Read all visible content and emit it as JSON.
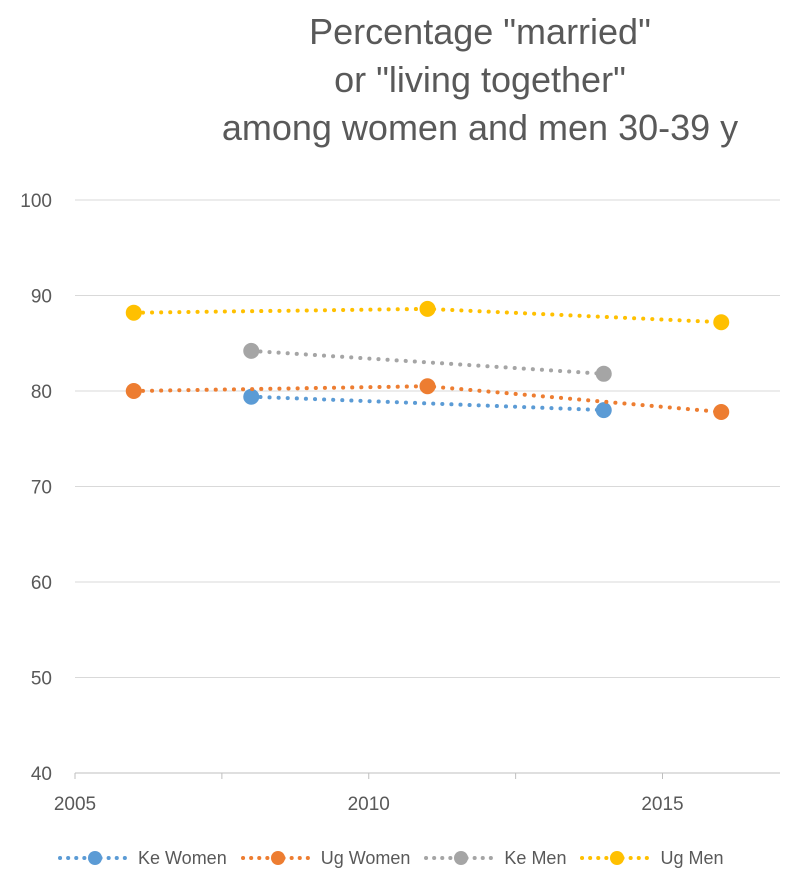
{
  "chart_data": {
    "type": "line",
    "title_lines": [
      "Percentage \"married\"",
      "or \"living together\"",
      "among women and men 30-39 y"
    ],
    "xlim": [
      2005,
      2017
    ],
    "ylim": [
      40,
      100
    ],
    "x_ticks": [
      2005,
      2010,
      2015
    ],
    "y_ticks": [
      40,
      50,
      60,
      70,
      80,
      90,
      100
    ],
    "grid": true,
    "legend_position": "bottom",
    "series": [
      {
        "name": "Ke Women",
        "color": "#5B9BD5",
        "points": [
          {
            "x": 2008,
            "y": 79.4
          },
          {
            "x": 2014,
            "y": 78.0
          }
        ]
      },
      {
        "name": "Ug Women",
        "color": "#ED7D31",
        "points": [
          {
            "x": 2006,
            "y": 80.0
          },
          {
            "x": 2011,
            "y": 80.5
          },
          {
            "x": 2016,
            "y": 77.8
          }
        ]
      },
      {
        "name": "Ke Men",
        "color": "#A5A5A5",
        "points": [
          {
            "x": 2008,
            "y": 84.2
          },
          {
            "x": 2014,
            "y": 81.8
          }
        ]
      },
      {
        "name": "Ug Men",
        "color": "#FFC000",
        "points": [
          {
            "x": 2006,
            "y": 88.2
          },
          {
            "x": 2011,
            "y": 88.6
          },
          {
            "x": 2016,
            "y": 87.2
          }
        ]
      }
    ],
    "trendlines": "dotted"
  }
}
